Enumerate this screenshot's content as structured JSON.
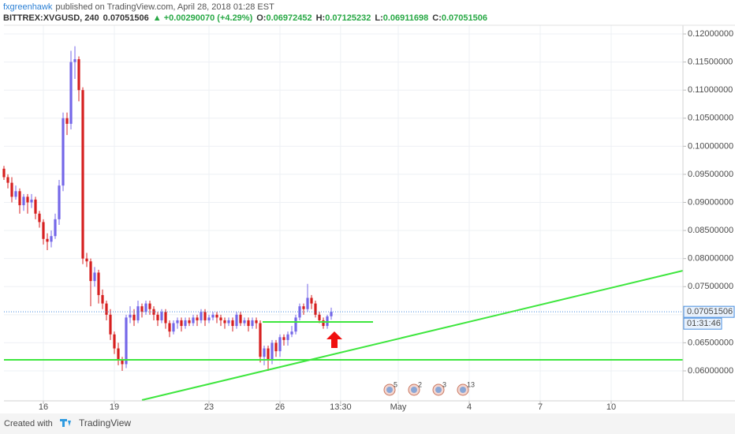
{
  "header": {
    "author": "fxgreenhawk",
    "published": "published on TradingView.com, April 28, 2018 01:28 EST"
  },
  "legend": {
    "symbol": "BITTREX:XVGUSD, 240",
    "price": "0.07051506",
    "change": "▲ +0.00290070 (+4.29%)",
    "fields": [
      {
        "label": "O:",
        "value": "0.06972452"
      },
      {
        "label": "H:",
        "value": "0.07125232"
      },
      {
        "label": "L:",
        "value": "0.06911698"
      },
      {
        "label": "C:",
        "value": "0.07051506"
      }
    ]
  },
  "chart_data": {
    "type": "candlestick",
    "up_color": "#7467e8",
    "down_color": "#d61f1f",
    "grid": true,
    "x": [
      8,
      12,
      16,
      20,
      24,
      28,
      32,
      36,
      40,
      44,
      48,
      52,
      56,
      60,
      64,
      68,
      72,
      76,
      80,
      84,
      88,
      92,
      96,
      100,
      104,
      108,
      112,
      116,
      120,
      124,
      128,
      132,
      136,
      140,
      144,
      148,
      152,
      156,
      160,
      164,
      168,
      172,
      176,
      180,
      184,
      188,
      192,
      196,
      200,
      204,
      208,
      212,
      216,
      220,
      224,
      228,
      232,
      236,
      240,
      244,
      248,
      252,
      256,
      260,
      264,
      268,
      272,
      276,
      280,
      284,
      288,
      292,
      296,
      300,
      304,
      308,
      312,
      316,
      320,
      324,
      328,
      332,
      336,
      340
    ],
    "open": [
      0.096,
      0.0945,
      0.0935,
      0.091,
      0.092,
      0.0895,
      0.091,
      0.09,
      0.0905,
      0.088,
      0.0865,
      0.0835,
      0.083,
      0.084,
      0.087,
      0.093,
      0.105,
      0.104,
      0.115,
      0.1155,
      0.11,
      0.08,
      0.0795,
      0.076,
      0.0775,
      0.0735,
      0.072,
      0.07,
      0.0665,
      0.064,
      0.062,
      0.0612,
      0.0695,
      0.07,
      0.069,
      0.0715,
      0.0705,
      0.072,
      0.071,
      0.07,
      0.069,
      0.0705,
      0.0685,
      0.067,
      0.0685,
      0.069,
      0.068,
      0.069,
      0.0685,
      0.0695,
      0.069,
      0.0705,
      0.069,
      0.0695,
      0.07,
      0.0695,
      0.069,
      0.0685,
      0.069,
      0.068,
      0.07,
      0.0685,
      0.069,
      0.068,
      0.069,
      0.0685,
      0.0625,
      0.064,
      0.062,
      0.065,
      0.0635,
      0.066,
      0.0655,
      0.0665,
      0.067,
      0.0695,
      0.0715,
      0.071,
      0.073,
      0.072,
      0.07,
      0.069,
      0.068,
      0.06972452
    ],
    "high": [
      0.0965,
      0.095,
      0.0945,
      0.093,
      0.0925,
      0.0915,
      0.0915,
      0.0915,
      0.091,
      0.0885,
      0.087,
      0.0845,
      0.085,
      0.088,
      0.094,
      0.106,
      0.106,
      0.117,
      0.1178,
      0.116,
      0.1105,
      0.081,
      0.08,
      0.0785,
      0.078,
      0.0745,
      0.0725,
      0.071,
      0.067,
      0.065,
      0.0625,
      0.07,
      0.0715,
      0.071,
      0.0725,
      0.072,
      0.0725,
      0.0725,
      0.0715,
      0.0705,
      0.071,
      0.071,
      0.069,
      0.069,
      0.0695,
      0.0695,
      0.0695,
      0.0695,
      0.07,
      0.07,
      0.071,
      0.071,
      0.07,
      0.0705,
      0.0705,
      0.07,
      0.0695,
      0.0695,
      0.0695,
      0.0705,
      0.0705,
      0.0695,
      0.0695,
      0.0695,
      0.0695,
      0.069,
      0.0645,
      0.0645,
      0.0655,
      0.0655,
      0.0665,
      0.0665,
      0.067,
      0.068,
      0.07,
      0.072,
      0.072,
      0.0755,
      0.0735,
      0.0725,
      0.0705,
      0.0695,
      0.07,
      0.07125232
    ],
    "low": [
      0.094,
      0.0925,
      0.09,
      0.0905,
      0.088,
      0.0885,
      0.088,
      0.089,
      0.087,
      0.0855,
      0.0825,
      0.0815,
      0.082,
      0.0835,
      0.086,
      0.092,
      0.102,
      0.103,
      0.112,
      0.108,
      0.079,
      0.0785,
      0.0715,
      0.075,
      0.072,
      0.071,
      0.069,
      0.0655,
      0.063,
      0.061,
      0.06,
      0.0605,
      0.0685,
      0.068,
      0.0685,
      0.0695,
      0.07,
      0.07,
      0.069,
      0.068,
      0.0685,
      0.0675,
      0.066,
      0.0665,
      0.0675,
      0.067,
      0.0675,
      0.068,
      0.068,
      0.068,
      0.0685,
      0.068,
      0.0685,
      0.069,
      0.0685,
      0.068,
      0.0675,
      0.068,
      0.067,
      0.0675,
      0.068,
      0.068,
      0.067,
      0.0675,
      0.0675,
      0.0615,
      0.061,
      0.06,
      0.0612,
      0.0625,
      0.0625,
      0.0645,
      0.0645,
      0.066,
      0.0665,
      0.069,
      0.07,
      0.0705,
      0.071,
      0.0695,
      0.0685,
      0.0675,
      0.0675,
      0.06911698
    ],
    "close": [
      0.0945,
      0.0935,
      0.091,
      0.092,
      0.0895,
      0.091,
      0.09,
      0.0905,
      0.088,
      0.0865,
      0.0835,
      0.083,
      0.084,
      0.087,
      0.093,
      0.105,
      0.104,
      0.115,
      0.1155,
      0.11,
      0.08,
      0.0795,
      0.076,
      0.0775,
      0.0735,
      0.072,
      0.07,
      0.0665,
      0.064,
      0.062,
      0.0612,
      0.0695,
      0.07,
      0.069,
      0.0715,
      0.0705,
      0.072,
      0.071,
      0.07,
      0.069,
      0.0705,
      0.0685,
      0.067,
      0.0685,
      0.069,
      0.068,
      0.069,
      0.0685,
      0.0695,
      0.069,
      0.0705,
      0.069,
      0.0695,
      0.07,
      0.0695,
      0.069,
      0.0685,
      0.069,
      0.068,
      0.07,
      0.0685,
      0.069,
      0.068,
      0.069,
      0.0685,
      0.0625,
      0.064,
      0.062,
      0.065,
      0.0635,
      0.066,
      0.0655,
      0.0665,
      0.067,
      0.0695,
      0.0715,
      0.071,
      0.073,
      0.072,
      0.07,
      0.069,
      0.068,
      0.0697,
      0.07051506
    ],
    "xlim": [
      8,
      696.8
    ],
    "xticks": [
      {
        "value": 48,
        "label": "16"
      },
      {
        "value": 120,
        "label": "19"
      },
      {
        "value": 216,
        "label": "23"
      },
      {
        "value": 288,
        "label": "26"
      },
      {
        "value": 349.5,
        "label": "13:30"
      },
      {
        "value": 408,
        "label": "May"
      },
      {
        "value": 480,
        "label": "4"
      },
      {
        "value": 552,
        "label": "7"
      },
      {
        "value": 624,
        "label": "10"
      }
    ],
    "ylim": [
      0.05466,
      0.12155
    ],
    "yticks": [
      {
        "value": 0.06,
        "label": "0.06000000"
      },
      {
        "value": 0.065,
        "label": "0.06500000"
      },
      {
        "value": 0.07,
        "label": "0.07000000"
      },
      {
        "value": 0.075,
        "label": "0.07500000"
      },
      {
        "value": 0.08,
        "label": "0.08000000"
      },
      {
        "value": 0.085,
        "label": "0.08500000"
      },
      {
        "value": 0.09,
        "label": "0.09000000"
      },
      {
        "value": 0.095,
        "label": "0.09500000"
      },
      {
        "value": 0.1,
        "label": "0.10000000"
      },
      {
        "value": 0.105,
        "label": "0.10500000"
      },
      {
        "value": 0.11,
        "label": "0.11000000"
      },
      {
        "value": 0.115,
        "label": "0.11500000"
      },
      {
        "value": 0.12,
        "label": "0.12000000"
      }
    ],
    "countdown": "01:31:46",
    "events": [
      {
        "label": "5"
      },
      {
        "label": "2"
      },
      {
        "label": "3"
      },
      {
        "label": "13"
      }
    ]
  },
  "footer": {
    "created": "Created with",
    "brand": "TradingView"
  }
}
